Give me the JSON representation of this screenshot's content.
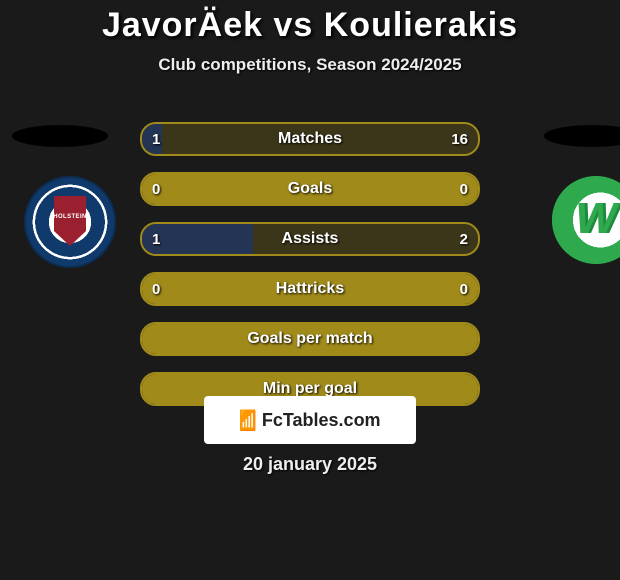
{
  "title": "JavorÄek vs Koulierakis",
  "subtitle": "Club competitions, Season 2024/2025",
  "date": "20 january 2025",
  "footer_brand": "FcTables.com",
  "footer_logo": "📊",
  "colors": {
    "border": "#a08a1a",
    "full_fill": "#a08a1a",
    "partial_tint": "rgba(160,138,26,0.25)",
    "left_highlight": "rgba(38,58,96,0.85)"
  },
  "bars": [
    {
      "label": "Matches",
      "left": "1",
      "right": "16",
      "left_pct": 6,
      "right_pct": 94,
      "mode": "split"
    },
    {
      "label": "Goals",
      "left": "0",
      "right": "0",
      "left_pct": 0,
      "right_pct": 0,
      "mode": "full"
    },
    {
      "label": "Assists",
      "left": "1",
      "right": "2",
      "left_pct": 33,
      "right_pct": 67,
      "mode": "split"
    },
    {
      "label": "Hattricks",
      "left": "0",
      "right": "0",
      "left_pct": 0,
      "right_pct": 0,
      "mode": "full"
    },
    {
      "label": "Goals per match",
      "left": "",
      "right": "",
      "left_pct": 0,
      "right_pct": 0,
      "mode": "full"
    },
    {
      "label": "Min per goal",
      "left": "",
      "right": "",
      "left_pct": 0,
      "right_pct": 0,
      "mode": "full"
    }
  ]
}
